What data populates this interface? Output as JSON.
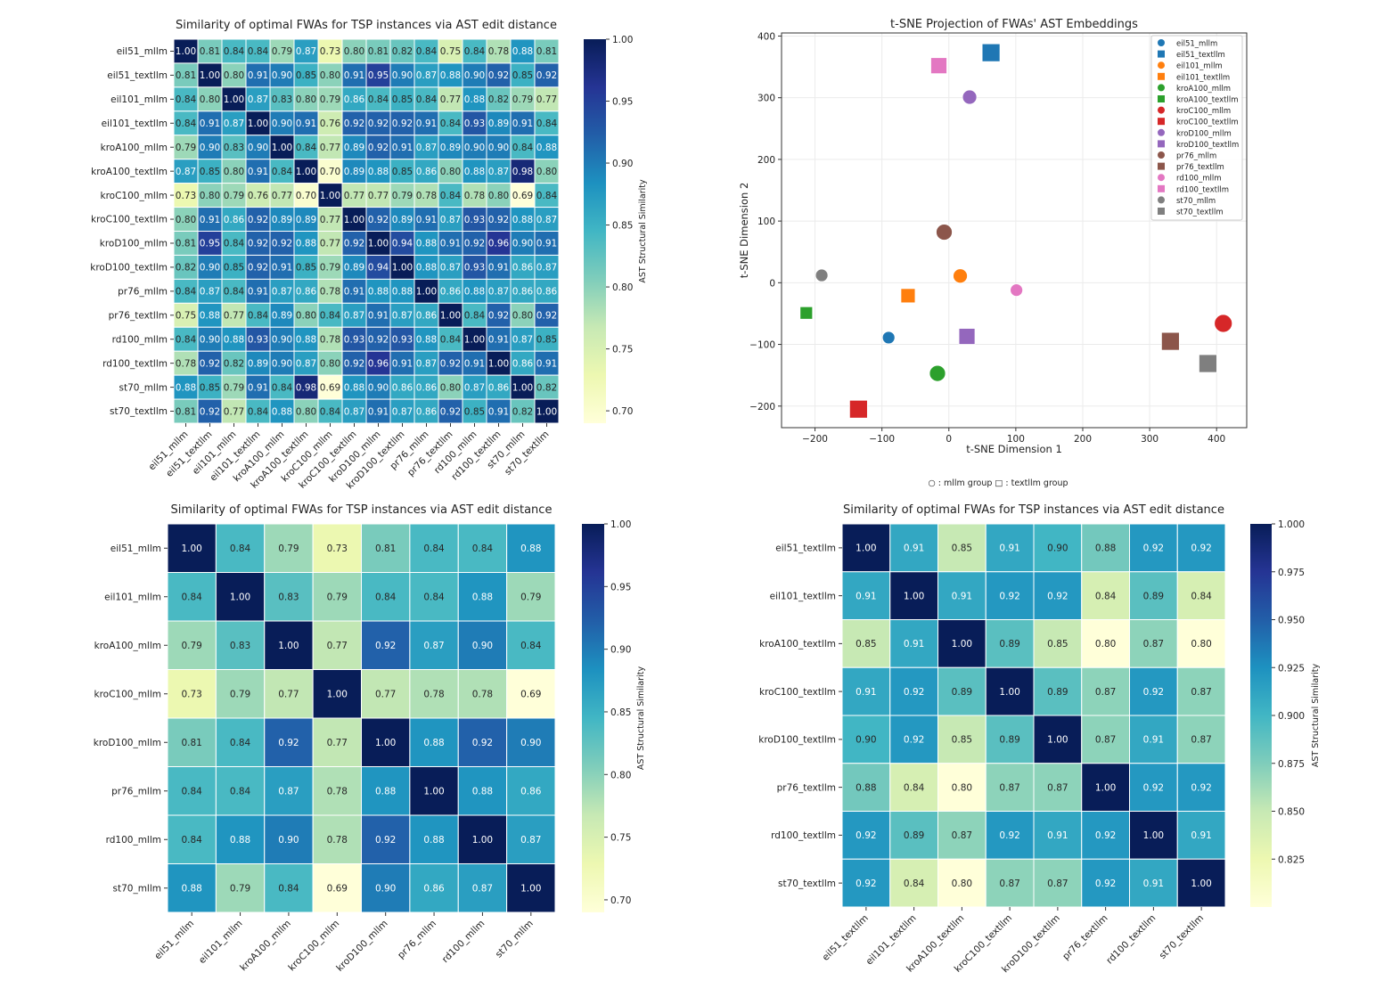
{
  "colormap": [
    "#ffffd9",
    "#edf8b1",
    "#c7e9b4",
    "#7fcdbb",
    "#41b6c4",
    "#1d91c0",
    "#225ea8",
    "#253494",
    "#081d58"
  ],
  "chart_data": [
    {
      "type": "heatmap",
      "title": "Similarity of optimal FWAs for TSP instances via AST edit distance",
      "colorbar_label": "AST Structural Similarity",
      "colorbar_range": [
        0.69,
        1.0
      ],
      "colorbar_ticks": [
        "0.70",
        "0.75",
        "0.80",
        "0.85",
        "0.90",
        "0.95",
        "1.00"
      ],
      "labels": [
        "eil51_mllm",
        "eil51_textllm",
        "eil101_mllm",
        "eil101_textllm",
        "kroA100_mllm",
        "kroA100_textllm",
        "kroC100_mllm",
        "kroC100_textllm",
        "kroD100_mllm",
        "kroD100_textllm",
        "pr76_mllm",
        "pr76_textllm",
        "rd100_mllm",
        "rd100_textllm",
        "st70_mllm",
        "st70_textllm"
      ],
      "values": [
        [
          1.0,
          0.81,
          0.84,
          0.84,
          0.79,
          0.87,
          0.73,
          0.8,
          0.81,
          0.82,
          0.84,
          0.75,
          0.84,
          0.78,
          0.88,
          0.81
        ],
        [
          0.81,
          1.0,
          0.8,
          0.91,
          0.9,
          0.85,
          0.8,
          0.91,
          0.95,
          0.9,
          0.87,
          0.88,
          0.9,
          0.92,
          0.85,
          0.92
        ],
        [
          0.84,
          0.8,
          1.0,
          0.87,
          0.83,
          0.8,
          0.79,
          0.86,
          0.84,
          0.85,
          0.84,
          0.77,
          0.88,
          0.82,
          0.79,
          0.77
        ],
        [
          0.84,
          0.91,
          0.87,
          1.0,
          0.9,
          0.91,
          0.76,
          0.92,
          0.92,
          0.92,
          0.91,
          0.84,
          0.93,
          0.89,
          0.91,
          0.84
        ],
        [
          0.79,
          0.9,
          0.83,
          0.9,
          1.0,
          0.84,
          0.77,
          0.89,
          0.92,
          0.91,
          0.87,
          0.89,
          0.9,
          0.9,
          0.84,
          0.88
        ],
        [
          0.87,
          0.85,
          0.8,
          0.91,
          0.84,
          1.0,
          0.7,
          0.89,
          0.88,
          0.85,
          0.86,
          0.8,
          0.88,
          0.87,
          0.98,
          0.8
        ],
        [
          0.73,
          0.8,
          0.79,
          0.76,
          0.77,
          0.7,
          1.0,
          0.77,
          0.77,
          0.79,
          0.78,
          0.84,
          0.78,
          0.8,
          0.69,
          0.84
        ],
        [
          0.8,
          0.91,
          0.86,
          0.92,
          0.89,
          0.89,
          0.77,
          1.0,
          0.92,
          0.89,
          0.91,
          0.87,
          0.93,
          0.92,
          0.88,
          0.87
        ],
        [
          0.81,
          0.95,
          0.84,
          0.92,
          0.92,
          0.88,
          0.77,
          0.92,
          1.0,
          0.94,
          0.88,
          0.91,
          0.92,
          0.96,
          0.9,
          0.91
        ],
        [
          0.82,
          0.9,
          0.85,
          0.92,
          0.91,
          0.85,
          0.79,
          0.89,
          0.94,
          1.0,
          0.88,
          0.87,
          0.93,
          0.91,
          0.86,
          0.87
        ],
        [
          0.84,
          0.87,
          0.84,
          0.91,
          0.87,
          0.86,
          0.78,
          0.91,
          0.88,
          0.88,
          1.0,
          0.86,
          0.88,
          0.87,
          0.86,
          0.86
        ],
        [
          0.75,
          0.88,
          0.77,
          0.84,
          0.89,
          0.8,
          0.84,
          0.87,
          0.91,
          0.87,
          0.86,
          1.0,
          0.84,
          0.92,
          0.8,
          0.92
        ],
        [
          0.84,
          0.9,
          0.88,
          0.93,
          0.9,
          0.88,
          0.78,
          0.93,
          0.92,
          0.93,
          0.88,
          0.84,
          1.0,
          0.91,
          0.87,
          0.85
        ],
        [
          0.78,
          0.92,
          0.82,
          0.89,
          0.9,
          0.87,
          0.8,
          0.92,
          0.96,
          0.91,
          0.87,
          0.92,
          0.91,
          1.0,
          0.86,
          0.91
        ],
        [
          0.88,
          0.85,
          0.79,
          0.91,
          0.84,
          0.98,
          0.69,
          0.88,
          0.9,
          0.86,
          0.86,
          0.8,
          0.87,
          0.86,
          1.0,
          0.82
        ],
        [
          0.81,
          0.92,
          0.77,
          0.84,
          0.88,
          0.8,
          0.84,
          0.87,
          0.91,
          0.87,
          0.86,
          0.92,
          0.85,
          0.91,
          0.82,
          1.0
        ]
      ]
    },
    {
      "type": "scatter",
      "title": "t-SNE Projection of FWAs' AST Embeddings",
      "xlabel": "t-SNE Dimension 1",
      "ylabel": "t-SNE Dimension 2",
      "xlim": [
        -250,
        445
      ],
      "ylim": [
        -235,
        405
      ],
      "xticks": [
        -200,
        -100,
        0,
        100,
        200,
        300,
        400
      ],
      "yticks": [
        -200,
        -100,
        0,
        100,
        200,
        300,
        400
      ],
      "grid": true,
      "legend_position": "top-right",
      "footnote": "○ : mllm group   □ : textllm group",
      "series": [
        {
          "name": "eil51_mllm",
          "marker": "circle",
          "color": "#1f77b4",
          "x": -90,
          "y": -89
        },
        {
          "name": "eil51_textllm",
          "marker": "square",
          "color": "#1f77b4",
          "x": 63,
          "y": 373
        },
        {
          "name": "eil101_mllm",
          "marker": "circle",
          "color": "#ff7f0e",
          "x": 17,
          "y": 11
        },
        {
          "name": "eil101_textllm",
          "marker": "square",
          "color": "#ff7f0e",
          "x": -61,
          "y": -21
        },
        {
          "name": "kroA100_mllm",
          "marker": "circle",
          "color": "#2ca02c",
          "x": -17,
          "y": -147
        },
        {
          "name": "kroA100_textllm",
          "marker": "square",
          "color": "#2ca02c",
          "x": -213,
          "y": -49
        },
        {
          "name": "kroC100_mllm",
          "marker": "circle",
          "color": "#d62728",
          "x": 410,
          "y": -66
        },
        {
          "name": "kroC100_textllm",
          "marker": "square",
          "color": "#d62728",
          "x": -135,
          "y": -205
        },
        {
          "name": "kroD100_mllm",
          "marker": "circle",
          "color": "#9467bd",
          "x": 31,
          "y": 301
        },
        {
          "name": "kroD100_textllm",
          "marker": "square",
          "color": "#9467bd",
          "x": 27,
          "y": -87
        },
        {
          "name": "pr76_mllm",
          "marker": "circle",
          "color": "#8c564b",
          "x": -7,
          "y": 82
        },
        {
          "name": "pr76_textllm",
          "marker": "square",
          "color": "#8c564b",
          "x": 331,
          "y": -95
        },
        {
          "name": "rd100_mllm",
          "marker": "circle",
          "color": "#e377c2",
          "x": 101,
          "y": -12
        },
        {
          "name": "rd100_textllm",
          "marker": "square",
          "color": "#e377c2",
          "x": -15,
          "y": 352
        },
        {
          "name": "st70_mllm",
          "marker": "circle",
          "color": "#7f7f7f",
          "x": -190,
          "y": 12
        },
        {
          "name": "st70_textllm",
          "marker": "square",
          "color": "#7f7f7f",
          "x": 387,
          "y": -131
        }
      ]
    },
    {
      "type": "heatmap",
      "title": "Similarity of optimal FWAs for TSP instances via AST edit distance",
      "colorbar_label": "AST Structural Similarity",
      "colorbar_range": [
        0.69,
        1.0
      ],
      "colorbar_ticks": [
        "0.70",
        "0.75",
        "0.80",
        "0.85",
        "0.90",
        "0.95",
        "1.00"
      ],
      "labels": [
        "eil51_mllm",
        "eil101_mllm",
        "kroA100_mllm",
        "kroC100_mllm",
        "kroD100_mllm",
        "pr76_mllm",
        "rd100_mllm",
        "st70_mllm"
      ],
      "values": [
        [
          1.0,
          0.84,
          0.79,
          0.73,
          0.81,
          0.84,
          0.84,
          0.88
        ],
        [
          0.84,
          1.0,
          0.83,
          0.79,
          0.84,
          0.84,
          0.88,
          0.79
        ],
        [
          0.79,
          0.83,
          1.0,
          0.77,
          0.92,
          0.87,
          0.9,
          0.84
        ],
        [
          0.73,
          0.79,
          0.77,
          1.0,
          0.77,
          0.78,
          0.78,
          0.69
        ],
        [
          0.81,
          0.84,
          0.92,
          0.77,
          1.0,
          0.88,
          0.92,
          0.9
        ],
        [
          0.84,
          0.84,
          0.87,
          0.78,
          0.88,
          1.0,
          0.88,
          0.86
        ],
        [
          0.84,
          0.88,
          0.9,
          0.78,
          0.92,
          0.88,
          1.0,
          0.87
        ],
        [
          0.88,
          0.79,
          0.84,
          0.69,
          0.9,
          0.86,
          0.87,
          1.0
        ]
      ]
    },
    {
      "type": "heatmap",
      "title": "Similarity of optimal FWAs for TSP instances via AST edit distance",
      "colorbar_label": "AST Structural Similarity",
      "colorbar_range": [
        0.8,
        1.0
      ],
      "colorbar_ticks": [
        "0.825",
        "0.850",
        "0.875",
        "0.900",
        "0.925",
        "0.950",
        "0.975",
        "1.000"
      ],
      "labels": [
        "eil51_textllm",
        "eil101_textllm",
        "kroA100_textllm",
        "kroC100_textllm",
        "kroD100_textllm",
        "pr76_textllm",
        "rd100_textllm",
        "st70_textllm"
      ],
      "values": [
        [
          1.0,
          0.91,
          0.85,
          0.91,
          0.9,
          0.88,
          0.92,
          0.92
        ],
        [
          0.91,
          1.0,
          0.91,
          0.92,
          0.92,
          0.84,
          0.89,
          0.84
        ],
        [
          0.85,
          0.91,
          1.0,
          0.89,
          0.85,
          0.8,
          0.87,
          0.8
        ],
        [
          0.91,
          0.92,
          0.89,
          1.0,
          0.89,
          0.87,
          0.92,
          0.87
        ],
        [
          0.9,
          0.92,
          0.85,
          0.89,
          1.0,
          0.87,
          0.91,
          0.87
        ],
        [
          0.88,
          0.84,
          0.8,
          0.87,
          0.87,
          1.0,
          0.92,
          0.92
        ],
        [
          0.92,
          0.89,
          0.87,
          0.92,
          0.91,
          0.92,
          1.0,
          0.91
        ],
        [
          0.92,
          0.84,
          0.8,
          0.87,
          0.87,
          0.92,
          0.91,
          1.0
        ]
      ]
    }
  ]
}
